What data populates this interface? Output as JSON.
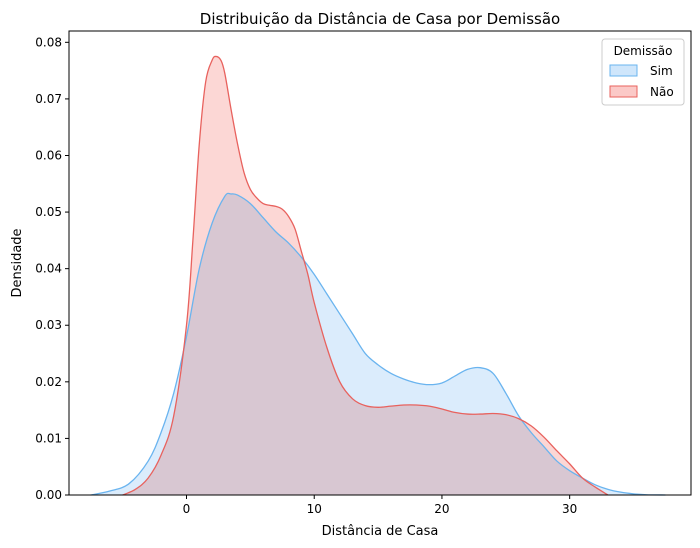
{
  "chart_data": {
    "type": "area",
    "title": "Distribuição da Distância de Casa por Demissão",
    "xlabel": "Distância de Casa",
    "ylabel": "Densidade",
    "xlim": [
      -9.2,
      39.5
    ],
    "ylim": [
      0,
      0.082
    ],
    "x_ticks": [
      0,
      10,
      20,
      30
    ],
    "y_ticks": [
      0.0,
      0.01,
      0.02,
      0.03,
      0.04,
      0.05,
      0.06,
      0.07,
      0.08
    ],
    "y_tick_labels": [
      "0.00",
      "0.01",
      "0.02",
      "0.03",
      "0.04",
      "0.05",
      "0.06",
      "0.07",
      "0.08"
    ],
    "legend": {
      "title": "Demissão",
      "position": "top-right"
    },
    "series": [
      {
        "name": "Sim",
        "line_color": "#6ab4ef",
        "fill_color": "#cfe6fb",
        "x": [
          -7.5,
          -6,
          -4.5,
          -3,
          -2,
          -1,
          0,
          1,
          2,
          3,
          3.5,
          4,
          5,
          6,
          7,
          8,
          9,
          10,
          11,
          12,
          13,
          14,
          15,
          16,
          17,
          18,
          19,
          20,
          21,
          22,
          23,
          24,
          25,
          26,
          27,
          28,
          29,
          30,
          31,
          32,
          33,
          34,
          35,
          36,
          37.5
        ],
        "values": [
          0.0,
          0.0007,
          0.002,
          0.006,
          0.011,
          0.018,
          0.028,
          0.04,
          0.048,
          0.0528,
          0.0532,
          0.053,
          0.0515,
          0.049,
          0.0465,
          0.0445,
          0.042,
          0.039,
          0.0355,
          0.032,
          0.0285,
          0.025,
          0.023,
          0.0215,
          0.0205,
          0.0198,
          0.0195,
          0.0198,
          0.021,
          0.0222,
          0.0225,
          0.0215,
          0.018,
          0.014,
          0.011,
          0.0085,
          0.006,
          0.0043,
          0.003,
          0.0018,
          0.001,
          0.0005,
          0.0002,
          5e-05,
          0.0
        ]
      },
      {
        "name": "Não",
        "line_color": "#e8625e",
        "fill_color": "#fbc9c7",
        "x": [
          -5,
          -4,
          -3,
          -2,
          -1,
          0,
          0.5,
          1,
          1.5,
          2,
          2.3,
          2.7,
          3,
          3.5,
          4,
          4.5,
          5,
          5.5,
          6,
          6.5,
          7,
          7.5,
          8,
          8.5,
          9,
          9.5,
          10,
          11,
          12,
          13,
          14,
          15,
          16,
          17,
          18,
          19,
          20,
          21,
          22,
          23,
          24,
          25,
          26,
          27,
          28,
          29,
          30,
          31,
          32,
          33
        ],
        "values": [
          0.0,
          0.001,
          0.003,
          0.007,
          0.014,
          0.03,
          0.045,
          0.062,
          0.073,
          0.0768,
          0.0775,
          0.0768,
          0.0745,
          0.068,
          0.062,
          0.057,
          0.054,
          0.0525,
          0.0515,
          0.0512,
          0.051,
          0.0505,
          0.0492,
          0.047,
          0.043,
          0.039,
          0.034,
          0.026,
          0.02,
          0.017,
          0.0158,
          0.0155,
          0.0157,
          0.0159,
          0.0159,
          0.0157,
          0.0152,
          0.0146,
          0.0143,
          0.0143,
          0.0144,
          0.0142,
          0.0135,
          0.0122,
          0.0102,
          0.0078,
          0.0055,
          0.003,
          0.0014,
          0.0
        ]
      }
    ]
  }
}
